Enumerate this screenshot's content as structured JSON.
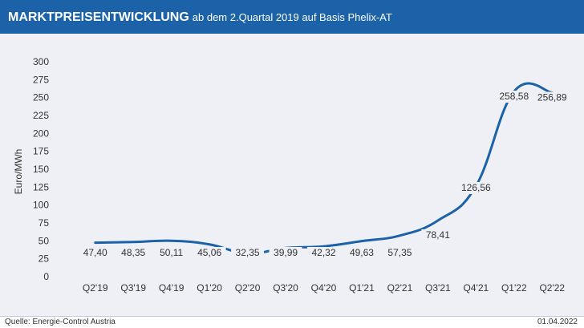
{
  "header": {
    "title_bold": "MARKTPREISENTWICKLUNG",
    "title_rest": "ab dem 2.Quartal 2019 auf Basis Phelix-AT"
  },
  "footer": {
    "source": "Quelle: Energie-Control Austria",
    "date": "01.04.2022"
  },
  "colors": {
    "header_bg": "#1c62a8",
    "line": "#1c62a8",
    "plot_bg": "#eef0f5"
  },
  "chart_data": {
    "type": "line",
    "ylabel": "Euro/MWh",
    "xlabel": "",
    "ylim": [
      0,
      300
    ],
    "yticks": [
      0,
      25,
      50,
      75,
      100,
      125,
      150,
      175,
      200,
      225,
      250,
      275,
      300
    ],
    "grid": false,
    "legend": "none",
    "categories": [
      "Q2'19",
      "Q3'19",
      "Q4'19",
      "Q1'20",
      "Q2'20",
      "Q3'20",
      "Q4'20",
      "Q1'21",
      "Q2'21",
      "Q3'21",
      "Q4'21",
      "Q1'22",
      "Q2'22"
    ],
    "values": [
      47.4,
      48.35,
      50.11,
      45.06,
      32.35,
      39.99,
      42.32,
      49.63,
      57.35,
      78.41,
      126.56,
      258.58,
      256.89
    ],
    "data_labels": [
      "47,40",
      "48,35",
      "50,11",
      "45,06",
      "32,35",
      "39,99",
      "42,32",
      "49,63",
      "57,35",
      "78,41",
      "126,56",
      "258,58",
      "256,89"
    ]
  }
}
